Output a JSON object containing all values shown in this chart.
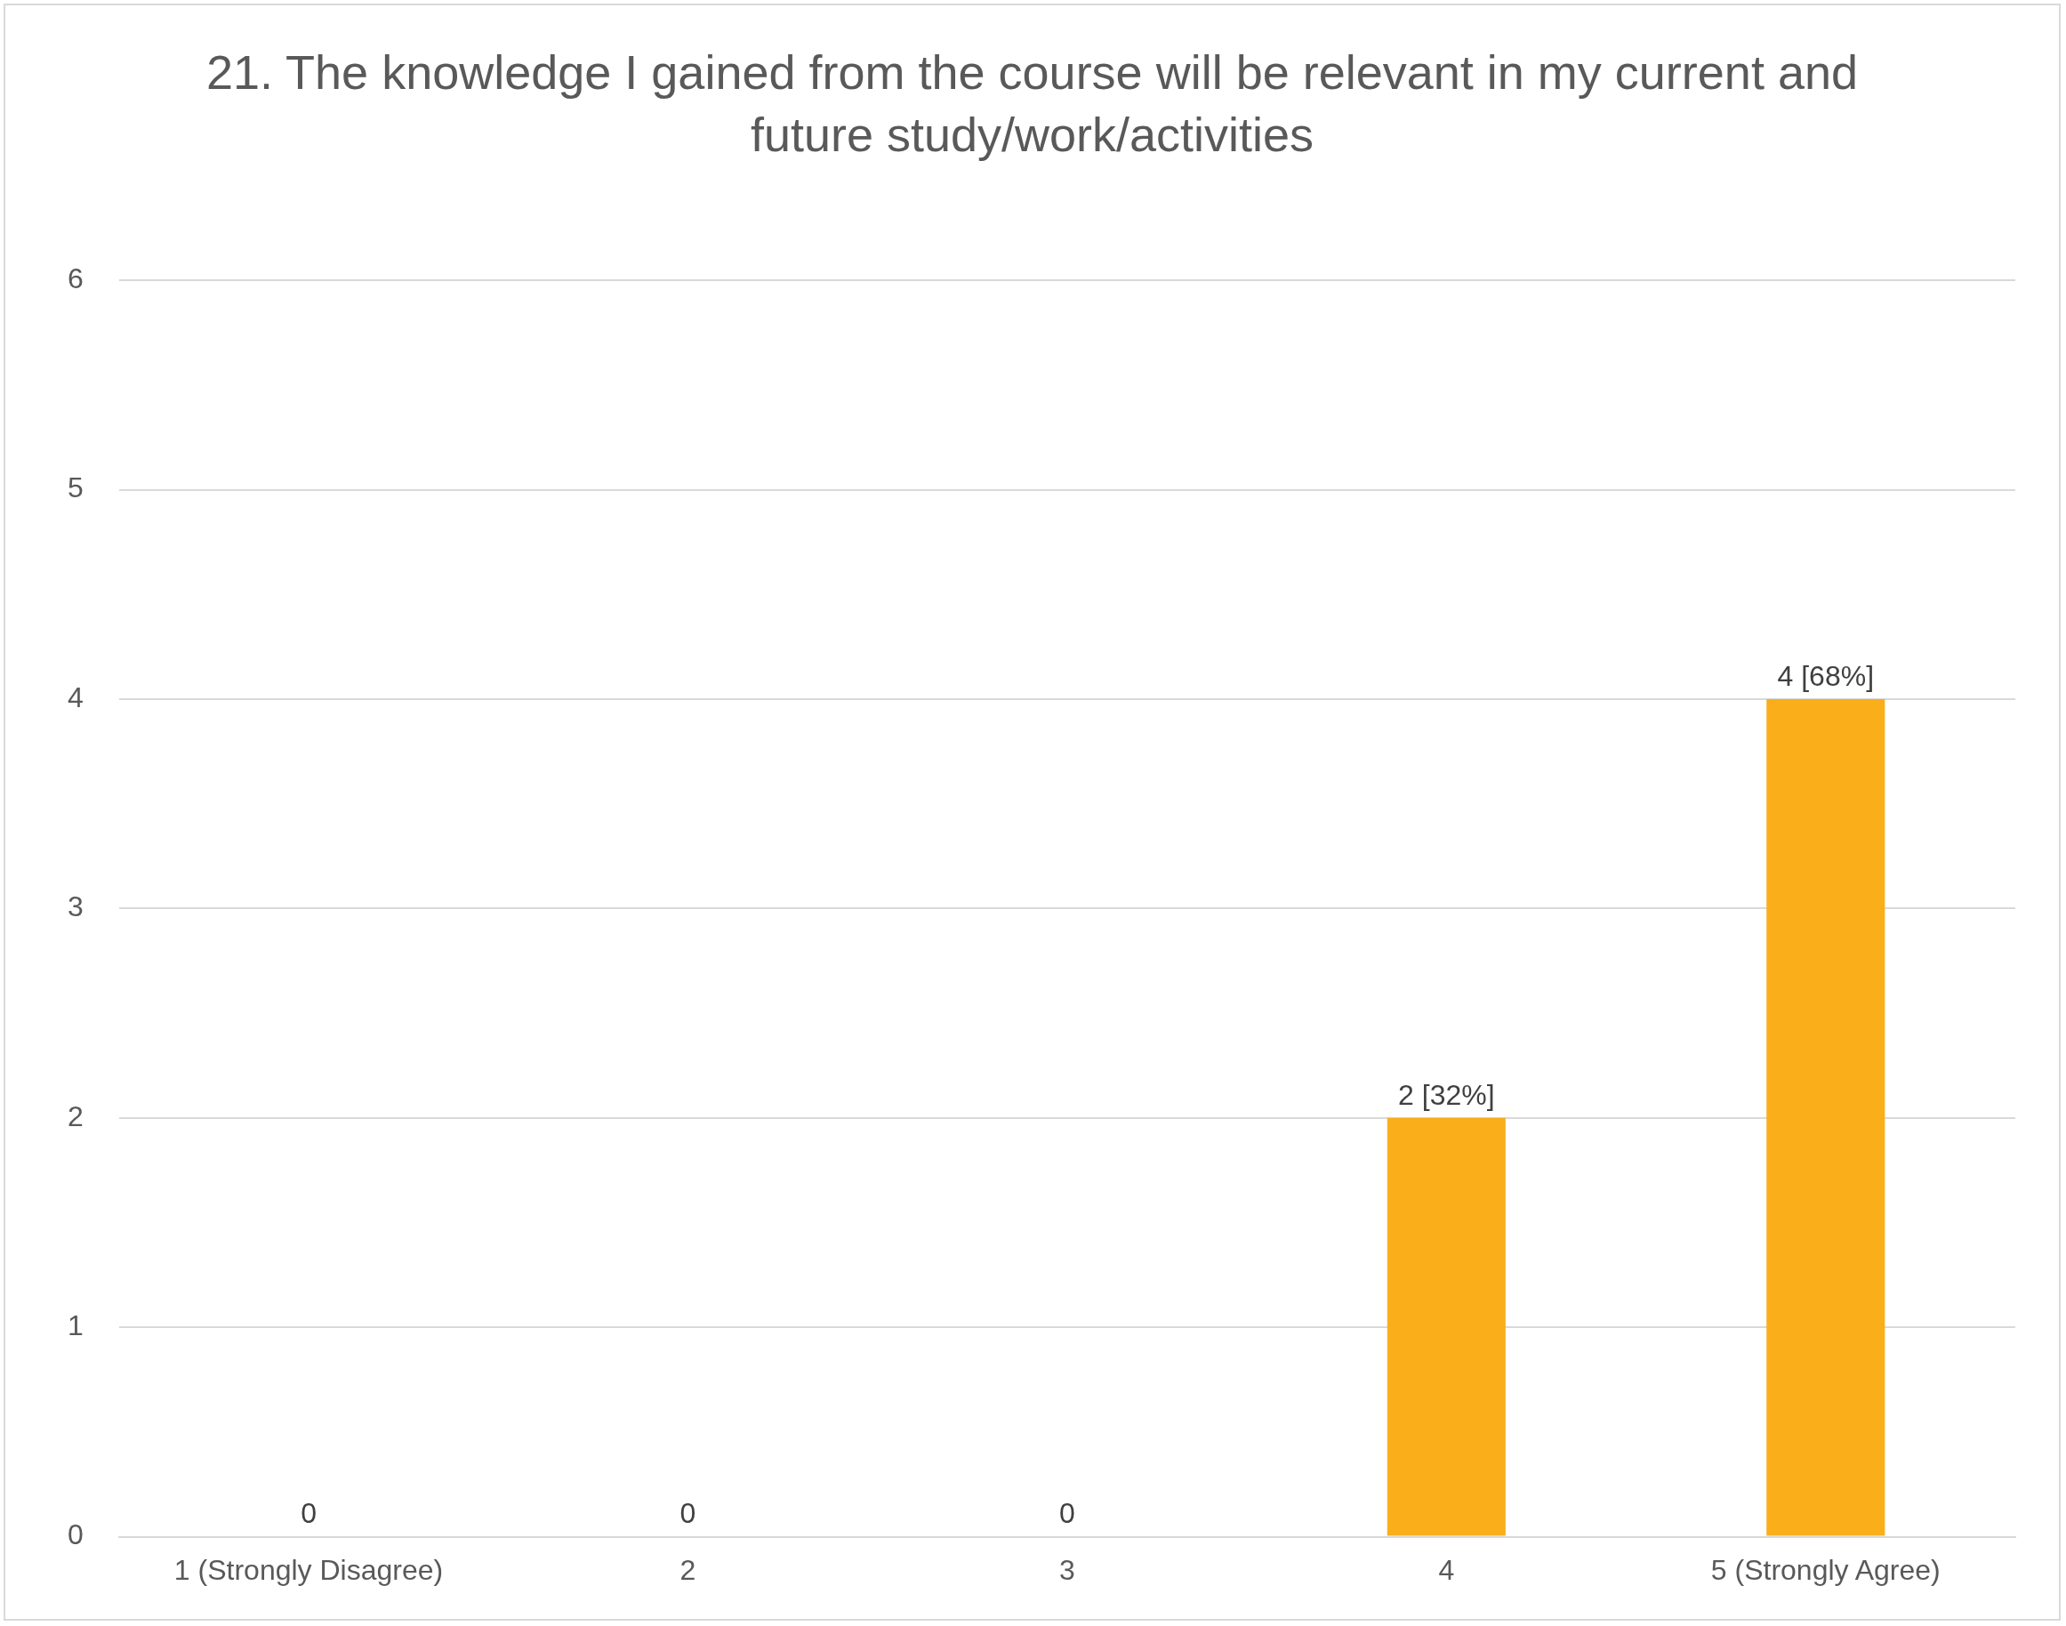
{
  "chart_data": {
    "type": "bar",
    "title": "21. The knowledge I gained from the course will be relevant in my current and future study/work/activities",
    "categories": [
      "1 (Strongly Disagree)",
      "2",
      "3",
      "4",
      "5 (Strongly Agree)"
    ],
    "values": [
      0,
      0,
      0,
      2,
      4
    ],
    "value_labels": [
      "0",
      "0",
      "0",
      "2 [32%]",
      "4 [68%]"
    ],
    "color": "#f9ae1a",
    "ylim": [
      0,
      6
    ],
    "yticks": [
      0,
      1,
      2,
      3,
      4,
      5,
      6
    ],
    "grid": "y",
    "legend": false
  }
}
